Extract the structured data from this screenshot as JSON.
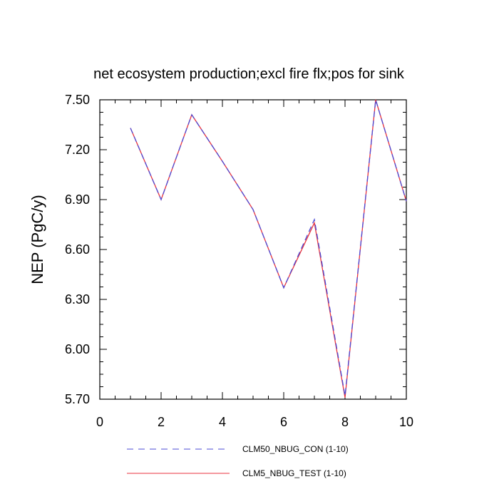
{
  "chart_data": {
    "type": "line",
    "title": "net ecosystem production;excl fire flx;pos for sink",
    "xlabel": "",
    "ylabel": "NEP  (PgC/y)",
    "xlim": [
      0,
      10
    ],
    "ylim": [
      5.7,
      7.5
    ],
    "x_ticks": [
      "0",
      "2",
      "4",
      "6",
      "8",
      "10"
    ],
    "y_ticks": [
      "5.70",
      "6.00",
      "6.30",
      "6.60",
      "6.90",
      "7.20",
      "7.50"
    ],
    "grid": false,
    "legend_position": "bottom",
    "series": [
      {
        "name": "CLM50_NBUG_CON (1-10)",
        "color": "#4b4bd6",
        "style": "dashed",
        "x": [
          1,
          2,
          3,
          4,
          5,
          6,
          7,
          8,
          9,
          10
        ],
        "values": [
          7.33,
          6.9,
          7.41,
          7.13,
          6.84,
          6.37,
          6.78,
          5.72,
          7.5,
          6.89
        ]
      },
      {
        "name": "CLM5_NBUG_TEST (1-10)",
        "color": "#e8323c",
        "style": "solid",
        "x": [
          1,
          2,
          3,
          4,
          5,
          6,
          7,
          8,
          9,
          10
        ],
        "values": [
          7.33,
          6.9,
          7.41,
          7.13,
          6.84,
          6.37,
          6.76,
          5.71,
          7.5,
          6.89
        ]
      }
    ]
  }
}
